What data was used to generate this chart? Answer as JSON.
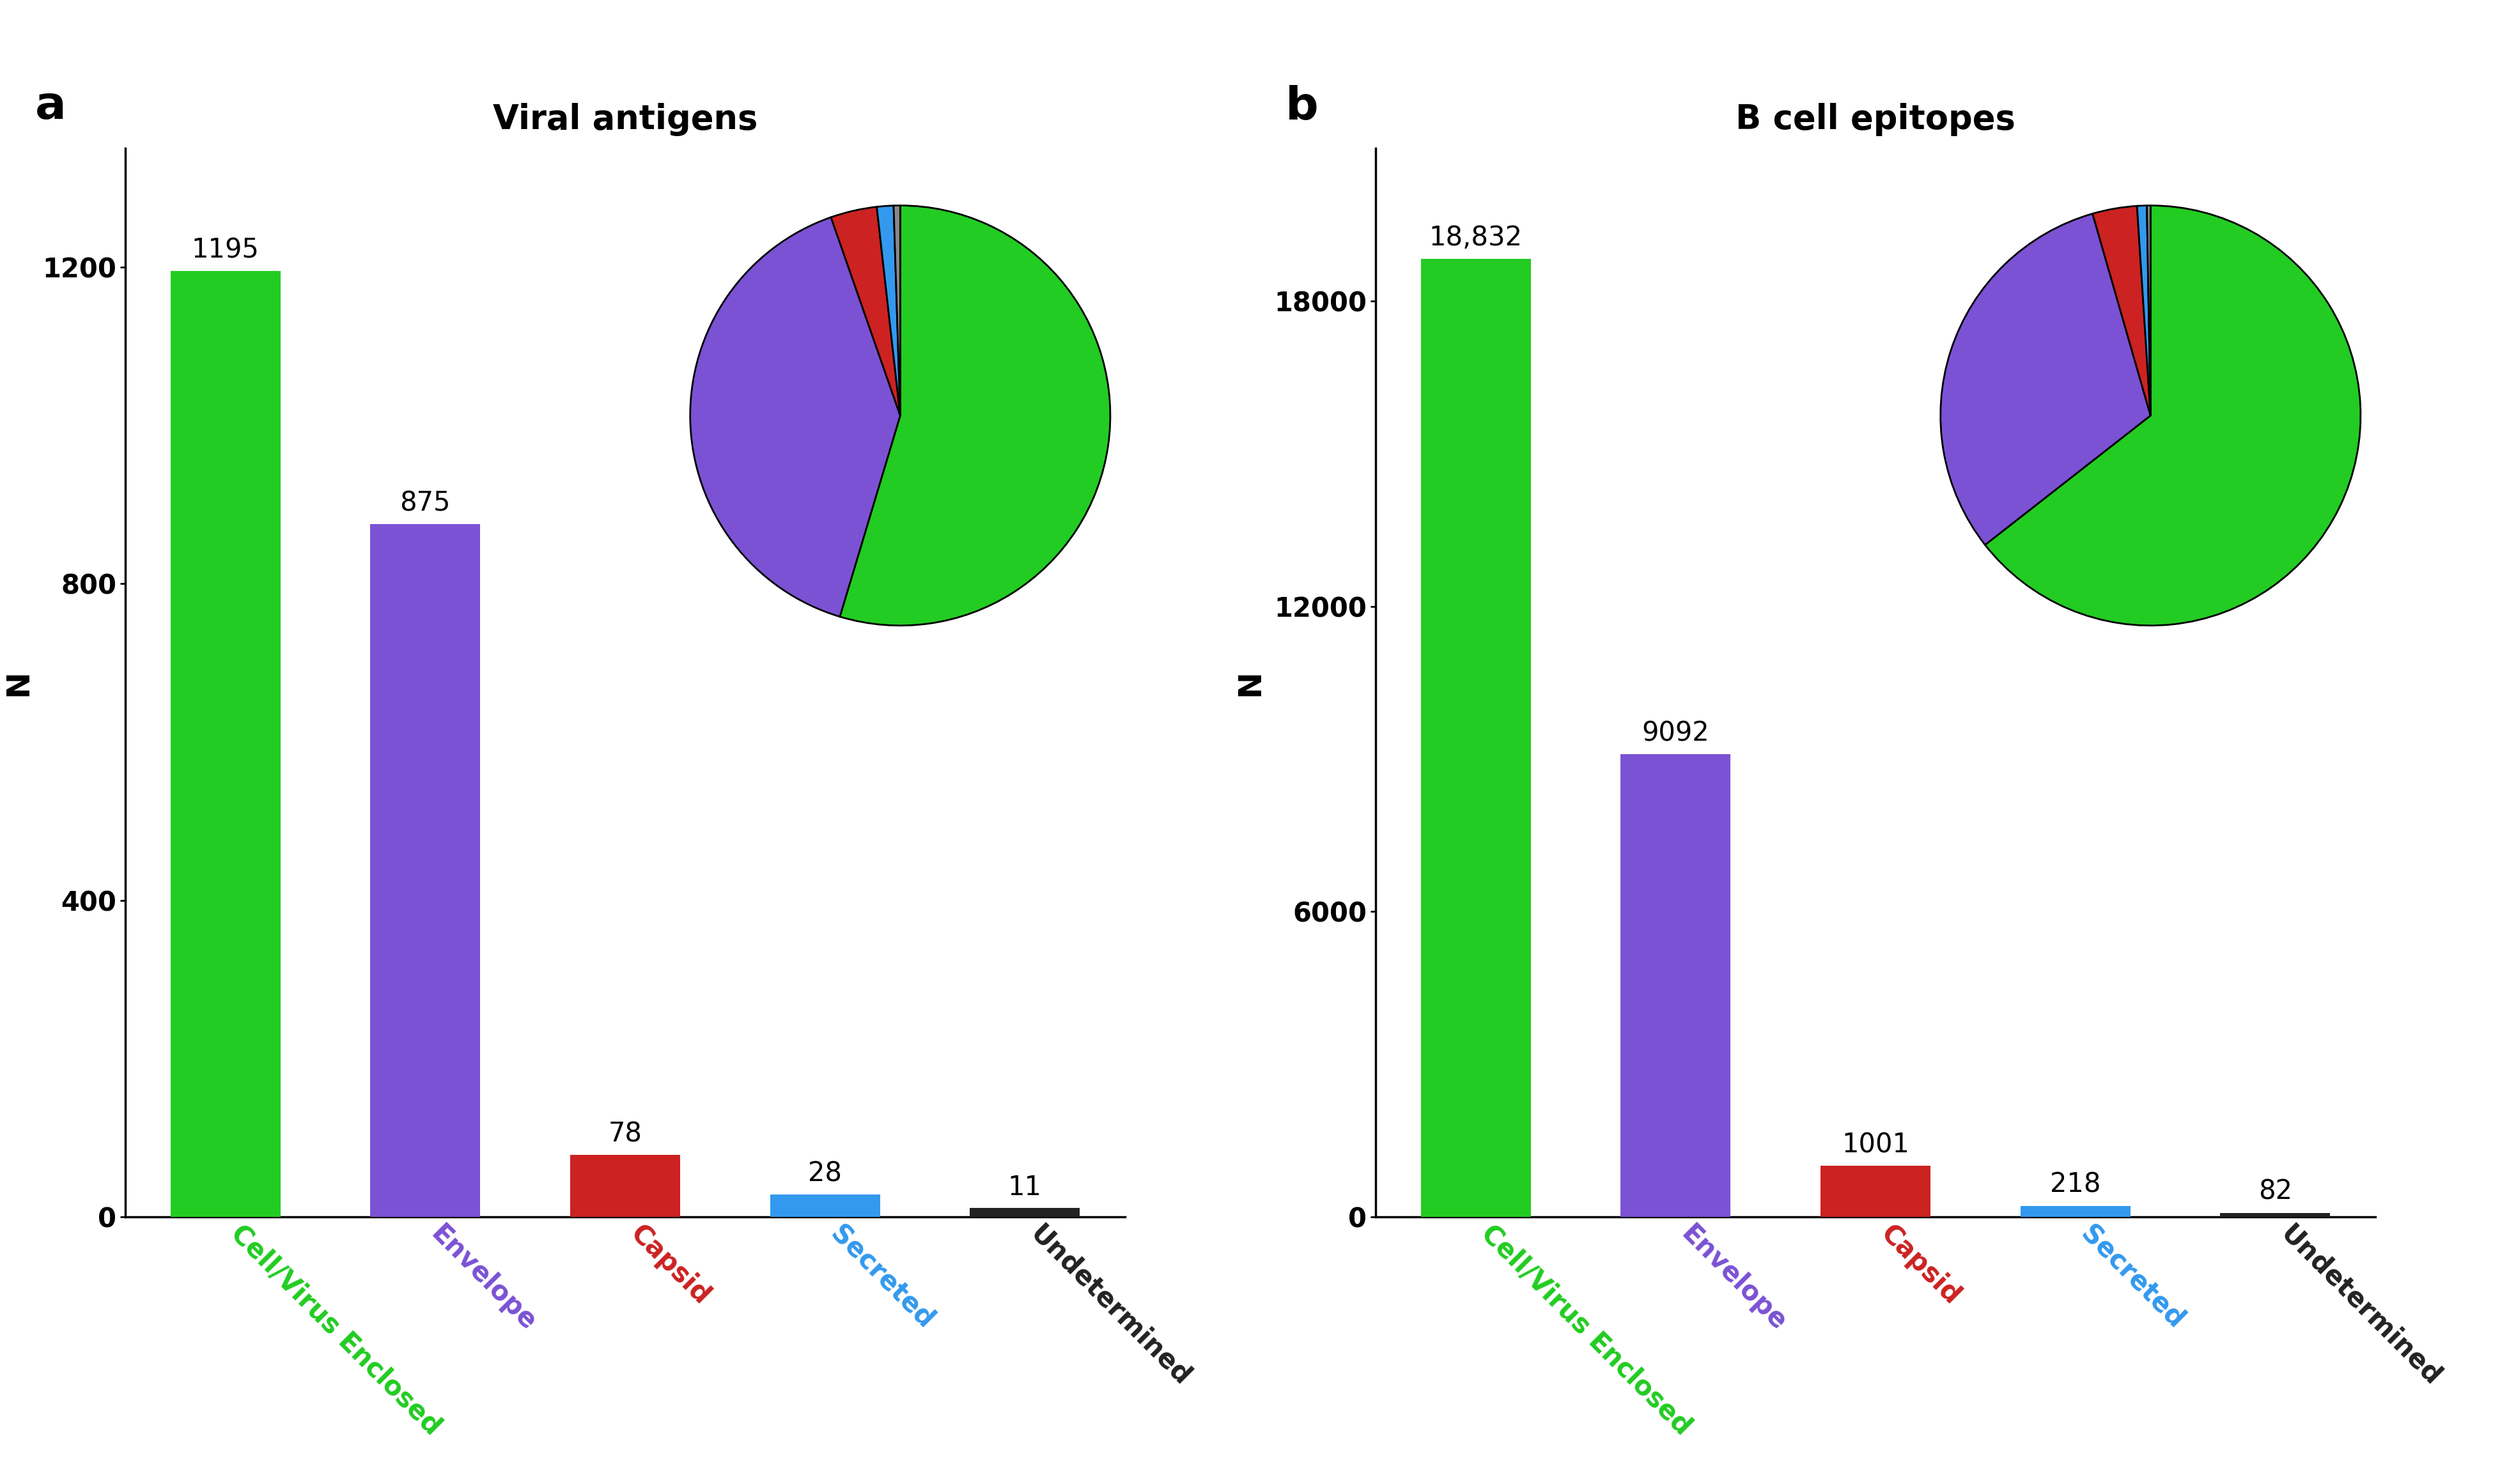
{
  "panel_a": {
    "title": "Viral antigens",
    "categories": [
      "Cell/Virus Enclosed",
      "Envelope",
      "Capsid",
      "Secreted",
      "Undetermined"
    ],
    "values": [
      1195,
      875,
      78,
      28,
      11
    ],
    "bar_colors": [
      "#22cc22",
      "#7b52d4",
      "#cc2222",
      "#3399ee",
      "#222222"
    ],
    "bar_labels": [
      "1195",
      "875",
      "78",
      "28",
      "11"
    ],
    "ylabel": "N",
    "ylim": [
      0,
      1350
    ],
    "yticks": [
      0,
      400,
      800,
      1200
    ],
    "pie_values": [
      1195,
      875,
      78,
      28,
      11
    ],
    "pie_colors": [
      "#22cc22",
      "#7b52d4",
      "#cc2222",
      "#3399ee",
      "#888888"
    ]
  },
  "panel_b": {
    "title": "B cell epitopes",
    "categories": [
      "Cell/Virus Enclosed",
      "Envelope",
      "Capsid",
      "Secreted",
      "Undetermined"
    ],
    "values": [
      18832,
      9092,
      1001,
      218,
      82
    ],
    "bar_colors": [
      "#22cc22",
      "#7b52d4",
      "#cc2222",
      "#3399ee",
      "#222222"
    ],
    "bar_labels": [
      "18,832",
      "9092",
      "1001",
      "218",
      "82"
    ],
    "ylabel": "N",
    "ylim": [
      0,
      21000
    ],
    "yticks": [
      0,
      6000,
      12000,
      18000
    ],
    "pie_values": [
      18832,
      9092,
      1001,
      218,
      82
    ],
    "pie_colors": [
      "#22cc22",
      "#7b52d4",
      "#cc2222",
      "#3399ee",
      "#888888"
    ]
  },
  "tick_label_colors": [
    "#22cc22",
    "#7b52d4",
    "#cc2222",
    "#3399ee",
    "#222222"
  ],
  "background_color": "#ffffff",
  "title_fontsize": 38,
  "label_fontsize": 30,
  "tick_fontsize": 30,
  "bar_label_fontsize": 30,
  "panel_label_fontsize": 52
}
